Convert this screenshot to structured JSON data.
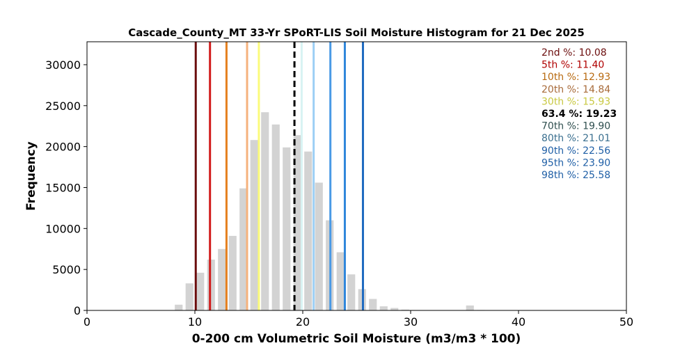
{
  "chart_data": {
    "type": "bar",
    "title": "Cascade_County_MT 33-Yr SPoRT-LIS Soil Moisture Histogram for 21 Dec 2025",
    "xlabel": "0-200 cm Volumetric Soil Moisture (m3/m3 * 100)",
    "ylabel": "Frequency",
    "xlim": [
      0,
      50
    ],
    "ylim": [
      0,
      32800
    ],
    "xticks": [
      0,
      10,
      20,
      30,
      40,
      50
    ],
    "yticks": [
      0,
      5000,
      10000,
      15000,
      20000,
      25000,
      30000
    ],
    "bin_width": 1,
    "bar_color": "#d3d3d3",
    "bins": [
      {
        "x": 8.5,
        "count": 700
      },
      {
        "x": 9.5,
        "count": 3300
      },
      {
        "x": 10.5,
        "count": 4600
      },
      {
        "x": 11.5,
        "count": 6200
      },
      {
        "x": 12.5,
        "count": 7500
      },
      {
        "x": 13.5,
        "count": 9100
      },
      {
        "x": 14.5,
        "count": 14900
      },
      {
        "x": 15.5,
        "count": 20800
      },
      {
        "x": 16.5,
        "count": 24200
      },
      {
        "x": 17.5,
        "count": 22700
      },
      {
        "x": 18.5,
        "count": 19900
      },
      {
        "x": 19.5,
        "count": 21400
      },
      {
        "x": 20.5,
        "count": 19400
      },
      {
        "x": 21.5,
        "count": 15600
      },
      {
        "x": 22.5,
        "count": 11000
      },
      {
        "x": 23.5,
        "count": 7100
      },
      {
        "x": 24.5,
        "count": 4400
      },
      {
        "x": 25.5,
        "count": 2600
      },
      {
        "x": 26.5,
        "count": 1400
      },
      {
        "x": 27.5,
        "count": 500
      },
      {
        "x": 28.5,
        "count": 300
      },
      {
        "x": 29.5,
        "count": 100
      },
      {
        "x": 30.5,
        "count": 50
      },
      {
        "x": 35.5,
        "count": 600
      },
      {
        "x": 36.5,
        "count": 50
      }
    ],
    "percentile_lines": [
      {
        "label": "2nd %",
        "value": 10.08,
        "color": "#6b0d0d",
        "text": "2nd %: 10.08"
      },
      {
        "label": "5th %",
        "value": 11.4,
        "color": "#d11a1a",
        "text": "5th %: 11.40"
      },
      {
        "label": "10th %",
        "value": 12.93,
        "color": "#e5801f",
        "text": "10th %: 12.93"
      },
      {
        "label": "20th %",
        "value": 14.84,
        "color": "#f5b27d",
        "text": "20th %: 14.84"
      },
      {
        "label": "30th %",
        "value": 15.93,
        "color": "#fbfb7a",
        "text": "30th %: 15.93"
      },
      {
        "label": "70th %",
        "value": 19.9,
        "color": "#d8f3f3",
        "text": "70th %: 19.90"
      },
      {
        "label": "80th %",
        "value": 21.01,
        "color": "#9ccff5",
        "text": "80th %: 21.01"
      },
      {
        "label": "90th %",
        "value": 22.56,
        "color": "#4a9ae6",
        "text": "90th %: 22.56"
      },
      {
        "label": "95th %",
        "value": 23.9,
        "color": "#2f86db",
        "text": "95th %: 23.90"
      },
      {
        "label": "98th %",
        "value": 25.58,
        "color": "#1f6bc0",
        "text": "98th %: 25.58"
      }
    ],
    "current_value": {
      "label": "63.4 %",
      "value": 19.23,
      "color": "#000000",
      "text": "63.4 %: 19.23"
    },
    "legend": {
      "placement": "top-right",
      "entries": [
        {
          "text": "2nd %: 10.08",
          "color": "#6b0d0d",
          "bold": false
        },
        {
          "text": "5th %: 11.40",
          "color": "#b00000",
          "bold": false
        },
        {
          "text": "10th %: 12.93",
          "color": "#b86a10",
          "bold": false
        },
        {
          "text": "20th %: 14.84",
          "color": "#a86b3a",
          "bold": false
        },
        {
          "text": "30th %: 15.93",
          "color": "#c8c840",
          "bold": false
        },
        {
          "text": "63.4 %: 19.23",
          "color": "#000000",
          "bold": true
        },
        {
          "text": "70th %: 19.90",
          "color": "#2f4f4f",
          "bold": false
        },
        {
          "text": "80th %: 21.01",
          "color": "#3a6f8f",
          "bold": false
        },
        {
          "text": "90th %: 22.56",
          "color": "#1f5fa6",
          "bold": false
        },
        {
          "text": "95th %: 23.90",
          "color": "#1f5fa6",
          "bold": false
        },
        {
          "text": "98th %: 25.58",
          "color": "#1f5fa6",
          "bold": false
        }
      ]
    }
  }
}
